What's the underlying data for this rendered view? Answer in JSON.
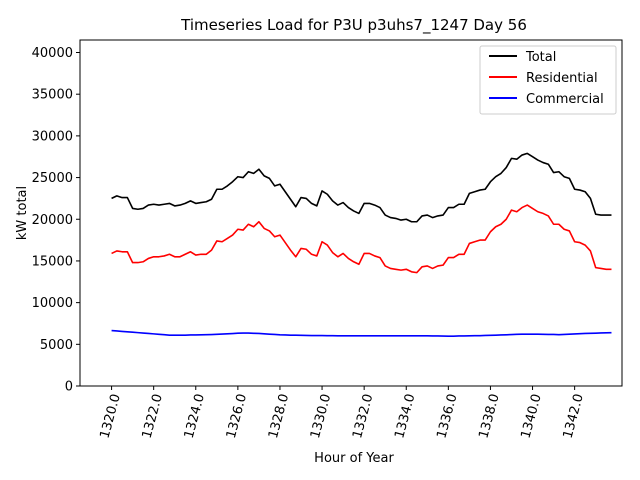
{
  "chart_data": {
    "type": "line",
    "title": "Timeseries Load for P3U p3uhs7_1247  Day 56",
    "xlabel": "Hour of Year",
    "ylabel": "kW total",
    "xlim": [
      1318.5,
      1344.25
    ],
    "ylim": [
      0,
      41500
    ],
    "xticks": [
      1320.0,
      1322.0,
      1324.0,
      1326.0,
      1328.0,
      1330.0,
      1332.0,
      1334.0,
      1336.0,
      1338.0,
      1340.0,
      1342.0
    ],
    "xtick_labels": [
      "1320.0",
      "1322.0",
      "1324.0",
      "1326.0",
      "1328.0",
      "1330.0",
      "1332.0",
      "1334.0",
      "1336.0",
      "1338.0",
      "1340.0",
      "1342.0"
    ],
    "yticks": [
      0,
      5000,
      10000,
      15000,
      20000,
      25000,
      30000,
      35000,
      40000
    ],
    "ytick_labels": [
      "0",
      "5000",
      "10000",
      "15000",
      "20000",
      "25000",
      "30000",
      "35000",
      "40000"
    ],
    "grid": false,
    "legend_position": "top-right",
    "x": [
      1320.0,
      1320.25,
      1320.5,
      1320.75,
      1321.0,
      1321.25,
      1321.5,
      1321.75,
      1322.0,
      1322.25,
      1322.5,
      1322.75,
      1323.0,
      1323.25,
      1323.5,
      1323.75,
      1324.0,
      1324.25,
      1324.5,
      1324.75,
      1325.0,
      1325.25,
      1325.5,
      1325.75,
      1326.0,
      1326.25,
      1326.5,
      1326.75,
      1327.0,
      1327.25,
      1327.5,
      1327.75,
      1328.0,
      1328.25,
      1328.5,
      1328.75,
      1329.0,
      1329.25,
      1329.5,
      1329.75,
      1330.0,
      1330.25,
      1330.5,
      1330.75,
      1331.0,
      1331.25,
      1331.5,
      1331.75,
      1332.0,
      1332.25,
      1332.5,
      1332.75,
      1333.0,
      1333.25,
      1333.5,
      1333.75,
      1334.0,
      1334.25,
      1334.5,
      1334.75,
      1335.0,
      1335.25,
      1335.5,
      1335.75,
      1336.0,
      1336.25,
      1336.5,
      1336.75,
      1337.0,
      1337.25,
      1337.5,
      1337.75,
      1338.0,
      1338.25,
      1338.5,
      1338.75,
      1339.0,
      1339.25,
      1339.5,
      1339.75,
      1340.0,
      1340.25,
      1340.5,
      1340.75,
      1341.0,
      1341.25,
      1341.5,
      1341.75,
      1342.0,
      1342.25,
      1342.5,
      1342.75,
      1343.0,
      1343.25,
      1343.5,
      1343.75
    ],
    "series": [
      {
        "name": "Total",
        "color": "#000000",
        "values": [
          22500,
          22800,
          22600,
          22600,
          21300,
          21200,
          21300,
          21700,
          21800,
          21700,
          21800,
          21900,
          21600,
          21700,
          21900,
          22200,
          21900,
          22000,
          22100,
          22400,
          23600,
          23600,
          24000,
          24500,
          25100,
          25000,
          25700,
          25500,
          26000,
          25200,
          24900,
          24000,
          24200,
          23300,
          22400,
          21500,
          22600,
          22500,
          21900,
          21600,
          23400,
          23000,
          22200,
          21700,
          22000,
          21400,
          21000,
          20700,
          21900,
          21900,
          21700,
          21400,
          20500,
          20200,
          20100,
          19900,
          20000,
          19700,
          19700,
          20400,
          20500,
          20200,
          20400,
          20500,
          21400,
          21400,
          21800,
          21800,
          23100,
          23300,
          23500,
          23600,
          24500,
          25100,
          25500,
          26200,
          27300,
          27200,
          27700,
          27900,
          27500,
          27100,
          26800,
          26600,
          25600,
          25700,
          25100,
          24900,
          23600,
          23500,
          23300,
          22500,
          20600,
          20500,
          20500,
          20500
        ]
      },
      {
        "name": "Residential",
        "color": "#ff0000",
        "values": [
          15900,
          16200,
          16100,
          16100,
          14800,
          14800,
          14900,
          15300,
          15500,
          15500,
          15600,
          15800,
          15500,
          15500,
          15800,
          16100,
          15700,
          15800,
          15800,
          16300,
          17400,
          17300,
          17700,
          18100,
          18800,
          18700,
          19400,
          19100,
          19700,
          18900,
          18600,
          17900,
          18100,
          17200,
          16300,
          15500,
          16500,
          16400,
          15800,
          15600,
          17300,
          16900,
          16000,
          15500,
          15900,
          15300,
          14900,
          14600,
          15900,
          15900,
          15600,
          15400,
          14400,
          14100,
          14000,
          13900,
          14000,
          13700,
          13600,
          14300,
          14400,
          14100,
          14400,
          14500,
          15400,
          15400,
          15800,
          15800,
          17100,
          17300,
          17500,
          17500,
          18500,
          19100,
          19400,
          20000,
          21100,
          20900,
          21400,
          21700,
          21300,
          20900,
          20700,
          20400,
          19400,
          19400,
          18800,
          18600,
          17300,
          17200,
          16900,
          16200,
          14200,
          14100,
          14000,
          14000
        ]
      },
      {
        "name": "Commercial",
        "color": "#0000ff",
        "values": [
          6650,
          6600,
          6550,
          6500,
          6450,
          6400,
          6350,
          6300,
          6250,
          6200,
          6150,
          6100,
          6100,
          6100,
          6100,
          6120,
          6130,
          6140,
          6150,
          6170,
          6200,
          6230,
          6260,
          6290,
          6330,
          6350,
          6350,
          6320,
          6300,
          6260,
          6220,
          6180,
          6140,
          6120,
          6100,
          6090,
          6080,
          6060,
          6050,
          6050,
          6050,
          6040,
          6030,
          6020,
          6020,
          6020,
          6020,
          6020,
          6020,
          6020,
          6020,
          6020,
          6020,
          6020,
          6020,
          6020,
          6020,
          6020,
          6020,
          6020,
          6020,
          6010,
          6000,
          5990,
          5980,
          5980,
          6000,
          6010,
          6020,
          6030,
          6040,
          6060,
          6080,
          6100,
          6120,
          6140,
          6170,
          6200,
          6210,
          6210,
          6210,
          6210,
          6200,
          6190,
          6180,
          6160,
          6190,
          6220,
          6250,
          6280,
          6300,
          6320,
          6340,
          6360,
          6380,
          6400
        ]
      }
    ]
  }
}
